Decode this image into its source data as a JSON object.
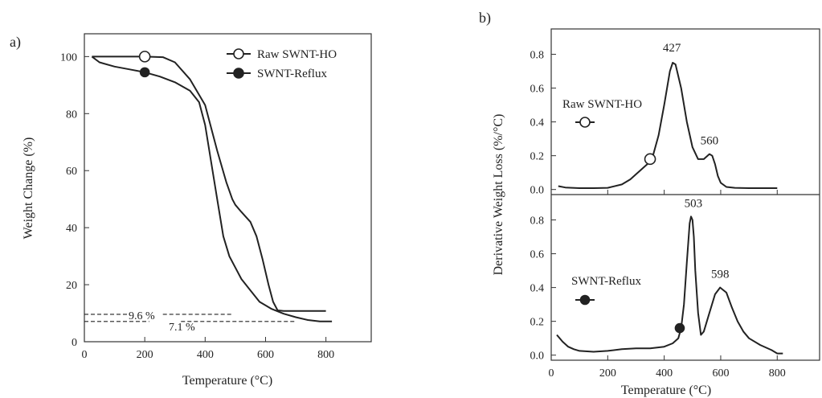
{
  "chart_data": [
    {
      "panel_label": "a)",
      "type": "line",
      "xlabel": "Temperature (°C)",
      "ylabel": "Weight Change (%)",
      "xlim": [
        0,
        950
      ],
      "ylim": [
        0,
        108
      ],
      "xticks": [
        0,
        200,
        400,
        600,
        800
      ],
      "yticks": [
        0,
        20,
        40,
        60,
        80,
        100
      ],
      "legend_position": "top-right",
      "series": [
        {
          "name": "Raw SWNT-HO",
          "marker": "open-circle",
          "marker_at": [
            200,
            100
          ],
          "x": [
            25,
            100,
            200,
            260,
            300,
            350,
            400,
            440,
            470,
            490,
            500,
            520,
            550,
            570,
            590,
            610,
            625,
            640,
            660,
            700,
            750,
            800
          ],
          "y": [
            100,
            100,
            100,
            99.8,
            98,
            92,
            83,
            67,
            56,
            50,
            48,
            45.5,
            42,
            37,
            29,
            20,
            14,
            11,
            10.8,
            10.8,
            10.8,
            10.8
          ]
        },
        {
          "name": "SWNT-Reflux",
          "marker": "filled-circle",
          "marker_at": [
            200,
            94.5
          ],
          "x": [
            25,
            50,
            100,
            150,
            200,
            250,
            300,
            350,
            380,
            400,
            420,
            440,
            460,
            480,
            500,
            520,
            550,
            580,
            620,
            660,
            700,
            740,
            780,
            820
          ],
          "y": [
            100,
            98,
            96.5,
            95.5,
            94.5,
            93,
            91,
            88,
            84,
            76,
            63,
            50,
            37,
            30,
            26,
            22,
            18,
            14,
            11.5,
            9.8,
            8.6,
            7.6,
            7.1,
            7.1
          ]
        }
      ],
      "annotations": [
        {
          "text": "9.6 %",
          "y": 9.6,
          "x_from": 0,
          "x_to": 490
        },
        {
          "text": "7.1 %",
          "y": 7.1,
          "x_from": 0,
          "x_to": 700
        }
      ]
    },
    {
      "panel_label": "b)",
      "type": "line",
      "xlabel": "Temperature (°C)",
      "ylabel": "Derivative Weight Loss (%/°C)",
      "xlim": [
        0,
        950
      ],
      "xticks": [
        0,
        200,
        400,
        600,
        800
      ],
      "subplots": [
        {
          "name": "Raw SWNT-HO",
          "marker": "open-circle",
          "marker_at": [
            350,
            0.18
          ],
          "ylim": [
            -0.03,
            0.95
          ],
          "yticks": [
            0.0,
            0.2,
            0.4,
            0.6,
            0.8
          ],
          "peak_labels": [
            {
              "text": "427",
              "x": 427,
              "y": 0.76
            },
            {
              "text": "560",
              "x": 560,
              "y": 0.21
            }
          ],
          "x": [
            25,
            50,
            100,
            150,
            200,
            250,
            280,
            300,
            320,
            340,
            360,
            380,
            400,
            420,
            430,
            440,
            460,
            480,
            500,
            520,
            540,
            560,
            570,
            580,
            590,
            600,
            620,
            650,
            700,
            750,
            800
          ],
          "y": [
            0.02,
            0.012,
            0.008,
            0.008,
            0.01,
            0.03,
            0.06,
            0.09,
            0.12,
            0.15,
            0.2,
            0.32,
            0.5,
            0.7,
            0.75,
            0.74,
            0.6,
            0.4,
            0.25,
            0.18,
            0.18,
            0.21,
            0.2,
            0.15,
            0.08,
            0.04,
            0.015,
            0.01,
            0.008,
            0.008,
            0.008
          ]
        },
        {
          "name": "SWNT-Reflux",
          "marker": "filled-circle",
          "marker_at": [
            455,
            0.16
          ],
          "ylim": [
            -0.03,
            0.95
          ],
          "yticks": [
            0.0,
            0.2,
            0.4,
            0.6,
            0.8
          ],
          "peak_labels": [
            {
              "text": "503",
              "x": 503,
              "y": 0.82
            },
            {
              "text": "598",
              "x": 598,
              "y": 0.4
            }
          ],
          "x": [
            20,
            40,
            60,
            80,
            100,
            150,
            200,
            250,
            300,
            350,
            400,
            430,
            450,
            460,
            470,
            480,
            490,
            495,
            500,
            505,
            510,
            520,
            530,
            540,
            560,
            580,
            598,
            620,
            640,
            660,
            680,
            700,
            740,
            780,
            800,
            820
          ],
          "y": [
            0.12,
            0.08,
            0.05,
            0.035,
            0.025,
            0.02,
            0.025,
            0.035,
            0.04,
            0.04,
            0.05,
            0.07,
            0.1,
            0.16,
            0.3,
            0.55,
            0.78,
            0.82,
            0.8,
            0.7,
            0.5,
            0.25,
            0.12,
            0.14,
            0.25,
            0.36,
            0.4,
            0.37,
            0.28,
            0.2,
            0.14,
            0.1,
            0.06,
            0.03,
            0.01,
            0.01
          ]
        }
      ]
    }
  ]
}
